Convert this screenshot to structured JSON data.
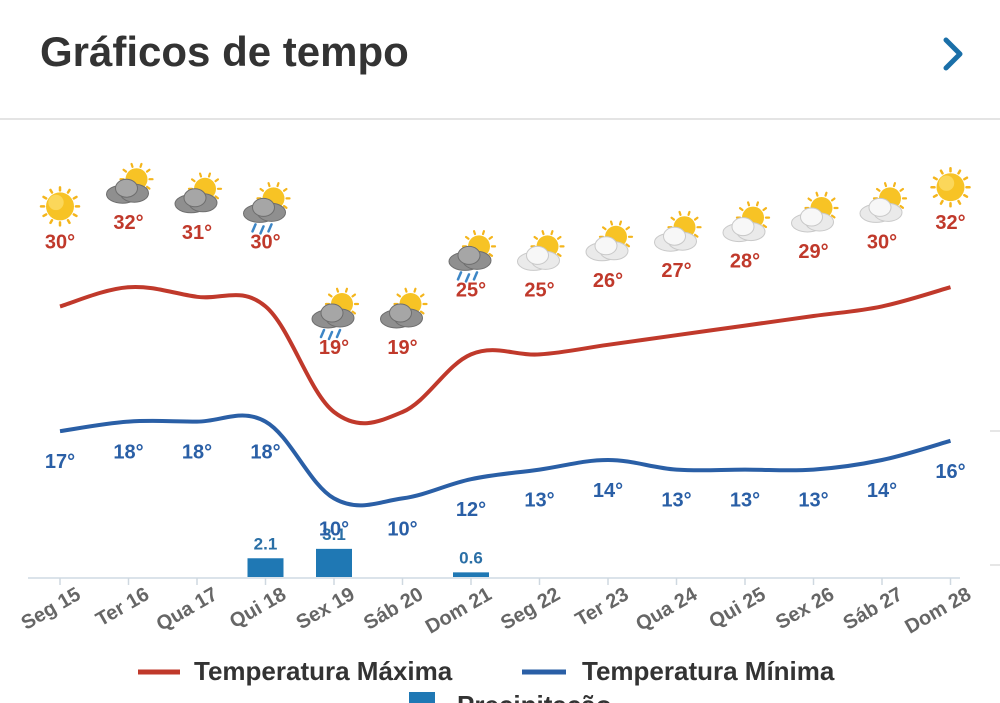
{
  "header": {
    "title": "Gráficos de tempo",
    "next_icon": "chevron-right-icon"
  },
  "chart_data": {
    "type": "line",
    "categories": [
      "Seg 15",
      "Ter 16",
      "Qua 17",
      "Qui 18",
      "Sex 19",
      "Sáb 20",
      "Dom 21",
      "Seg 22",
      "Ter 23",
      "Qua 24",
      "Qui 25",
      "Sex 26",
      "Sáb 27",
      "Dom 28"
    ],
    "series": [
      {
        "name": "Temperatura Máxima",
        "color": "#c0392b",
        "values": [
          30,
          32,
          31,
          30,
          19,
          19,
          25,
          25,
          26,
          27,
          28,
          29,
          30,
          32
        ]
      },
      {
        "name": "Temperatura Mínima",
        "color": "#2a5fa6",
        "values": [
          17,
          18,
          18,
          18,
          10,
          10,
          12,
          13,
          14,
          13,
          13,
          13,
          14,
          16
        ]
      },
      {
        "name": "Precipitação",
        "type": "bar",
        "color": "#1f78b4",
        "values": [
          null,
          null,
          null,
          2.1,
          3.1,
          null,
          0.6,
          null,
          null,
          null,
          null,
          null,
          null,
          null
        ]
      }
    ],
    "weather_icons": [
      "sun-icon",
      "partly-cloudy-icon",
      "partly-cloudy-icon",
      "rain-icon",
      "rain-icon",
      "partly-cloudy-icon",
      "rain-icon",
      "partly-cloudy-icon",
      "partly-cloudy-icon",
      "partly-cloudy-icon",
      "partly-cloudy-icon",
      "partly-cloudy-icon",
      "partly-cloudy-icon",
      "sun-icon"
    ],
    "unit": "°",
    "grid": false,
    "legend_position": "bottom"
  }
}
